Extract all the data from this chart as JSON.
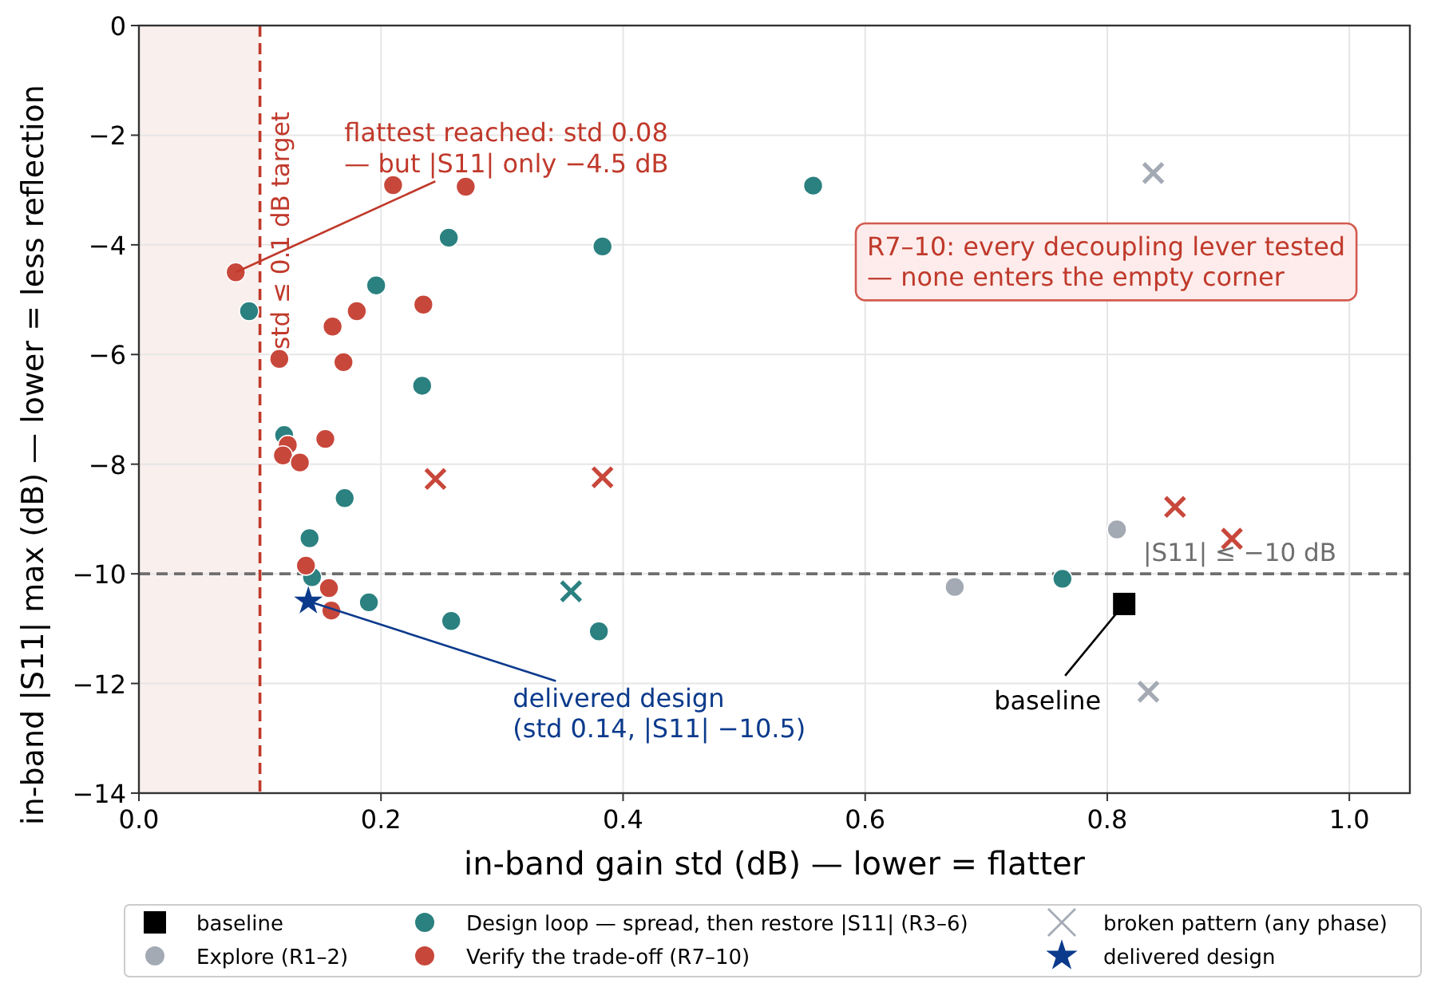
{
  "chart_data": {
    "type": "scatter",
    "xlabel": "in-band gain std (dB)  — lower = flatter",
    "ylabel": "in-band |S11| max (dB)  — lower = less reflection",
    "xlim": [
      0,
      1.05
    ],
    "ylim": [
      -14,
      0
    ],
    "xticks": [
      {
        "value": 0,
        "label": "0.0"
      },
      0.2,
      0.4,
      0.6,
      0.8,
      {
        "value": 1,
        "label": "1.0"
      }
    ],
    "yticks": [
      {
        "value": 0,
        "label": "0"
      },
      {
        "value": -2,
        "label": "−2"
      },
      {
        "value": -4,
        "label": "−4"
      },
      {
        "value": -6,
        "label": "−6"
      },
      {
        "value": -8,
        "label": "−8"
      },
      {
        "value": -10,
        "label": "−10"
      },
      {
        "value": -12,
        "label": "−12"
      },
      {
        "value": -14,
        "label": "−14"
      }
    ],
    "grid": true,
    "legend": "bottom",
    "series": [
      {
        "name": "baseline",
        "color": "#000000",
        "marker": "square",
        "x": [
          0.814
        ],
        "values": [
          -10.55
        ]
      },
      {
        "name": "Explore (R1–2)",
        "color": "#a4aab4",
        "marker": "circle",
        "x": [
          0.674,
          0.808
        ],
        "values": [
          -10.24,
          -9.19
        ]
      },
      {
        "name": "Design loop — spread, then restore |S11| (R3–6)",
        "color": "#2b8080",
        "marker": "circle",
        "x": [
          0.091,
          0.256,
          0.196,
          0.234,
          0.12,
          0.17,
          0.141,
          0.143,
          0.19,
          0.258,
          0.557,
          0.383,
          0.38,
          0.763
        ],
        "values": [
          -5.21,
          -3.87,
          -4.74,
          -6.57,
          -7.47,
          -8.62,
          -9.35,
          -10.06,
          -10.52,
          -10.86,
          -2.92,
          -4.03,
          -11.05,
          -10.09
        ]
      },
      {
        "name": "Verify the trade-off (R7–10)",
        "color": "#c8473b",
        "marker": "circle",
        "x": [
          0.08,
          0.21,
          0.27,
          0.18,
          0.16,
          0.235,
          0.116,
          0.169,
          0.154,
          0.123,
          0.119,
          0.133,
          0.138,
          0.157,
          0.159
        ],
        "values": [
          -4.5,
          -2.91,
          -2.94,
          -5.21,
          -5.49,
          -5.09,
          -6.08,
          -6.14,
          -7.54,
          -7.65,
          -7.84,
          -7.97,
          -9.85,
          -10.26,
          -10.67
        ]
      },
      {
        "name": "broken pattern (any phase)",
        "color": "#a4aab4",
        "marker": "cross",
        "x": [
          0.838,
          0.834,
          0.245,
          0.383,
          0.856,
          0.903,
          0.357
        ],
        "values": [
          -2.69,
          -12.15,
          -8.27,
          -8.24,
          -8.78,
          -9.36,
          -10.32
        ],
        "colors": [
          "#a4aab4",
          "#a4aab4",
          "#c8473b",
          "#c8473b",
          "#c8473b",
          "#c8473b",
          "#2b8080"
        ]
      },
      {
        "name": "delivered design",
        "color": "#0b3a8c",
        "marker": "star",
        "x": [
          0.14
        ],
        "values": [
          -10.5
        ]
      }
    ],
    "bands": [
      {
        "axis": "x",
        "from": 0,
        "to": 0.1,
        "color": "#f9efed"
      }
    ],
    "ref_lines": [
      {
        "axis": "x",
        "value": 0.1,
        "label": "std ≤ 0.1 dB target",
        "color": "#c0392b",
        "line_style": "dashed"
      },
      {
        "axis": "y",
        "value": -10,
        "label": "|S11| ≤ −10 dB",
        "color": "#6e6e6e",
        "line_style": "dashed"
      }
    ],
    "annotations": [
      {
        "text": "flattest reached: std 0.08\n— but |S11| only −4.5 dB",
        "x": 0.08,
        "y": -4.5
      },
      {
        "text": "delivered design\n(std 0.14, |S11| −10.5)",
        "x": 0.14,
        "y": -10.5
      },
      {
        "text": "baseline",
        "x": 0.814,
        "y": -10.55
      },
      "R7–10: every decoupling lever tested\n— none enters the empty corner"
    ]
  }
}
